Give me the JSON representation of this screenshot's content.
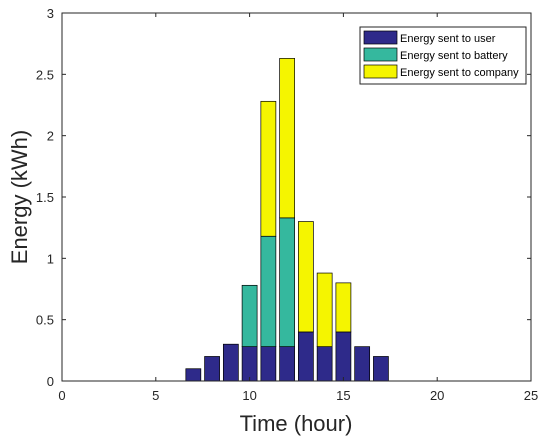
{
  "chart_data": {
    "type": "bar",
    "stacked": true,
    "xlabel": "Time (hour)",
    "ylabel": "Energy (kWh)",
    "xlim": [
      0,
      25
    ],
    "ylim": [
      0,
      3
    ],
    "xticks": [
      0,
      5,
      10,
      15,
      20,
      25
    ],
    "yticks": [
      0,
      0.5,
      1,
      1.5,
      2,
      2.5,
      3
    ],
    "ytick_labels": [
      "0",
      "0.5",
      "1",
      "1.5",
      "2",
      "2.5",
      "3"
    ],
    "grid": false,
    "legend_position": "top-right",
    "x": [
      1,
      2,
      3,
      4,
      5,
      6,
      7,
      8,
      9,
      10,
      11,
      12,
      13,
      14,
      15,
      16,
      17,
      18,
      19,
      20,
      21,
      22,
      23,
      24
    ],
    "series": [
      {
        "name": "Energy sent to user",
        "color": "#2e2a8a",
        "values": [
          0,
          0,
          0,
          0,
          0,
          0,
          0.1,
          0.2,
          0.3,
          0.28,
          0.28,
          0.28,
          0.4,
          0.28,
          0.4,
          0.28,
          0.2,
          0,
          0,
          0,
          0,
          0,
          0,
          0
        ]
      },
      {
        "name": "Energy sent to battery",
        "color": "#35b89e",
        "values": [
          0,
          0,
          0,
          0,
          0,
          0,
          0,
          0,
          0,
          0.5,
          0.9,
          1.05,
          0,
          0,
          0,
          0,
          0,
          0,
          0,
          0,
          0,
          0,
          0,
          0
        ]
      },
      {
        "name": "Energy sent to company",
        "color": "#f5f500",
        "values": [
          0,
          0,
          0,
          0,
          0,
          0,
          0,
          0,
          0,
          0,
          1.1,
          1.3,
          0.9,
          0.6,
          0.4,
          0,
          0,
          0,
          0,
          0,
          0,
          0,
          0,
          0
        ]
      }
    ]
  }
}
